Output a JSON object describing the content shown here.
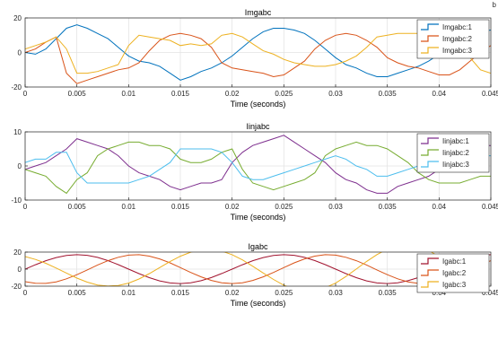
{
  "corner_mark": "b",
  "chart_data": [
    {
      "type": "line",
      "title": "Imgabc",
      "xlabel": "Time (seconds)",
      "ylabel": "",
      "xlim": [
        0,
        0.045
      ],
      "ylim": [
        -20,
        20
      ],
      "grid": true,
      "legend_position": "top-right",
      "xticks": [
        0,
        0.005,
        0.01,
        0.015,
        0.02,
        0.025,
        0.03,
        0.035,
        0.04,
        0.045
      ],
      "xtick_labels": [
        "0",
        "0.005",
        "0.01",
        "0.015",
        "0.02",
        "0.025",
        "0.03",
        "0.035",
        "0.04",
        "0.045"
      ],
      "yticks": [
        -20,
        0,
        20
      ],
      "ytick_labels": [
        "-20",
        "0",
        "20"
      ],
      "x": [
        0,
        0.001,
        0.002,
        0.003,
        0.004,
        0.005,
        0.006,
        0.007,
        0.008,
        0.009,
        0.01,
        0.011,
        0.012,
        0.013,
        0.014,
        0.015,
        0.016,
        0.017,
        0.018,
        0.019,
        0.02,
        0.021,
        0.022,
        0.023,
        0.024,
        0.025,
        0.026,
        0.027,
        0.028,
        0.029,
        0.03,
        0.031,
        0.032,
        0.033,
        0.034,
        0.035,
        0.036,
        0.037,
        0.038,
        0.039,
        0.04,
        0.041,
        0.042,
        0.043,
        0.044,
        0.045
      ],
      "series": [
        {
          "name": "Imgabc:1",
          "color": "#0072bd",
          "values": [
            0,
            -1,
            2,
            8,
            14,
            16,
            14,
            11,
            8,
            3,
            -2,
            -5,
            -6,
            -8,
            -12,
            -16,
            -14,
            -11,
            -9,
            -6,
            -2,
            3,
            8,
            12,
            14,
            14,
            13,
            11,
            7,
            2,
            -3,
            -7,
            -9,
            -12,
            -14,
            -14,
            -12,
            -10,
            -8,
            -5,
            -1,
            3,
            7,
            10,
            12,
            13
          ]
        },
        {
          "name": "Imgabc:2",
          "color": "#d95319",
          "values": [
            0,
            2,
            6,
            9,
            -12,
            -18,
            -16,
            -14,
            -12,
            -10,
            -9,
            -6,
            1,
            7,
            10,
            11,
            10,
            8,
            3,
            -6,
            -9,
            -10,
            -11,
            -12,
            -14,
            -13,
            -9,
            -5,
            2,
            7,
            10,
            11,
            10,
            7,
            3,
            -3,
            -6,
            -8,
            -9,
            -11,
            -13,
            -13,
            -10,
            -5,
            0,
            4
          ]
        },
        {
          "name": "Imgabc:3",
          "color": "#edb120",
          "values": [
            2,
            4,
            6,
            9,
            2,
            -12,
            -12,
            -11,
            -9,
            -7,
            4,
            10,
            9,
            8,
            7,
            4,
            5,
            4,
            5,
            10,
            11,
            9,
            5,
            1,
            -1,
            -4,
            -6,
            -7,
            -8,
            -8,
            -7,
            -5,
            -2,
            3,
            9,
            10,
            11,
            11,
            11,
            10,
            11,
            9,
            4,
            -3,
            -10,
            -12
          ]
        }
      ]
    },
    {
      "type": "line",
      "title": "Iinjabc",
      "xlabel": "Time (seconds)",
      "ylabel": "",
      "xlim": [
        0,
        0.045
      ],
      "ylim": [
        -10,
        10
      ],
      "grid": true,
      "legend_position": "top-right",
      "xticks": [
        0,
        0.005,
        0.01,
        0.015,
        0.02,
        0.025,
        0.03,
        0.035,
        0.04,
        0.045
      ],
      "xtick_labels": [
        "0",
        "0.005",
        "0.01",
        "0.015",
        "0.02",
        "0.025",
        "0.03",
        "0.035",
        "0.04",
        "0.045"
      ],
      "yticks": [
        -10,
        0,
        10
      ],
      "ytick_labels": [
        "-10",
        "0",
        "10"
      ],
      "x": [
        0,
        0.001,
        0.002,
        0.003,
        0.004,
        0.005,
        0.006,
        0.007,
        0.008,
        0.009,
        0.01,
        0.011,
        0.012,
        0.013,
        0.014,
        0.015,
        0.016,
        0.017,
        0.018,
        0.019,
        0.02,
        0.021,
        0.022,
        0.023,
        0.024,
        0.025,
        0.026,
        0.027,
        0.028,
        0.029,
        0.03,
        0.031,
        0.032,
        0.033,
        0.034,
        0.035,
        0.036,
        0.037,
        0.038,
        0.039,
        0.04,
        0.041,
        0.042,
        0.043,
        0.044,
        0.045
      ],
      "series": [
        {
          "name": "Iinjabc:1",
          "color": "#7e2f8e",
          "values": [
            -1,
            0,
            1,
            3,
            5,
            8,
            7,
            6,
            5,
            3,
            0,
            -2,
            -3,
            -4,
            -6,
            -7,
            -6,
            -5,
            -5,
            -4,
            1,
            4,
            6,
            7,
            8,
            9,
            7,
            5,
            3,
            1,
            -2,
            -4,
            -5,
            -7,
            -8,
            -8,
            -6,
            -5,
            -4,
            -3,
            -1,
            1,
            3,
            5,
            6,
            6
          ]
        },
        {
          "name": "Iinjabc:2",
          "color": "#77ac30",
          "values": [
            -1,
            -2,
            -3,
            -6,
            -8,
            -4,
            -2,
            3,
            5,
            6,
            7,
            7,
            6,
            6,
            5,
            2,
            1,
            1,
            2,
            4,
            5,
            -1,
            -5,
            -6,
            -7,
            -6,
            -5,
            -4,
            -2,
            3,
            5,
            6,
            7,
            6,
            6,
            5,
            3,
            1,
            -2,
            -4,
            -5,
            -5,
            -5,
            -4,
            -3,
            -3
          ]
        },
        {
          "name": "Iinjabc:3",
          "color": "#4dbeee",
          "values": [
            1,
            2,
            2,
            4,
            4,
            -2,
            -5,
            -5,
            -5,
            -5,
            -5,
            -4,
            -3,
            -1,
            1,
            5,
            5,
            5,
            5,
            4,
            1,
            -3,
            -4,
            -4,
            -3,
            -2,
            -1,
            0,
            1,
            2,
            3,
            2,
            0,
            -1,
            -3,
            -3,
            -2,
            -1,
            0,
            3,
            5,
            5,
            4,
            4,
            3,
            3
          ]
        }
      ]
    },
    {
      "type": "line",
      "title": "Igabc",
      "xlabel": "Time (seconds)",
      "ylabel": "",
      "xlim": [
        0,
        0.045
      ],
      "ylim": [
        -20,
        20
      ],
      "grid": true,
      "legend_position": "top-right",
      "xticks": [
        0,
        0.005,
        0.01,
        0.015,
        0.02,
        0.025,
        0.03,
        0.035,
        0.04,
        0.045
      ],
      "xtick_labels": [
        "0",
        "0.005",
        "0.01",
        "0.015",
        "0.02",
        "0.025",
        "0.03",
        "0.035",
        "0.04",
        "0.045"
      ],
      "yticks": [
        -20,
        0,
        20
      ],
      "ytick_labels": [
        "-20",
        "0",
        "20"
      ],
      "x": [
        0,
        0.001,
        0.002,
        0.003,
        0.004,
        0.005,
        0.006,
        0.007,
        0.008,
        0.009,
        0.01,
        0.011,
        0.012,
        0.013,
        0.014,
        0.015,
        0.016,
        0.017,
        0.018,
        0.019,
        0.02,
        0.021,
        0.022,
        0.023,
        0.024,
        0.025,
        0.026,
        0.027,
        0.028,
        0.029,
        0.03,
        0.031,
        0.032,
        0.033,
        0.034,
        0.035,
        0.036,
        0.037,
        0.038,
        0.039,
        0.04,
        0.041,
        0.042,
        0.043,
        0.044,
        0.045
      ],
      "series": [
        {
          "name": "Igabc:1",
          "color": "#a2142f",
          "values": [
            0,
            5.2,
            9.9,
            13.6,
            16.0,
            17.0,
            16.2,
            13.8,
            10.0,
            5.3,
            0,
            -5.3,
            -10.0,
            -13.8,
            -16.2,
            -17.0,
            -16.0,
            -13.6,
            -9.9,
            -5.2,
            0,
            5.2,
            9.9,
            13.6,
            16.0,
            17.0,
            16.2,
            13.8,
            10.0,
            5.3,
            0,
            -5.3,
            -10.0,
            -13.8,
            -16.2,
            -17.0,
            -16.0,
            -13.6,
            -9.9,
            -5.2,
            0,
            5.2,
            9.9,
            13.6,
            16.0,
            17.0
          ]
        },
        {
          "name": "Igabc:2",
          "color": "#d95319",
          "values": [
            -14.7,
            -16.6,
            -16.7,
            -14.9,
            -11.4,
            -6.5,
            -0.9,
            4.8,
            9.9,
            13.9,
            16.4,
            16.9,
            15.3,
            12.0,
            7.4,
            1.8,
            -3.9,
            -9.1,
            -13.3,
            -16.0,
            -16.9,
            -16.0,
            -13.3,
            -9.1,
            -3.9,
            1.8,
            7.4,
            12.0,
            15.3,
            16.9,
            16.4,
            13.9,
            9.9,
            4.8,
            -0.9,
            -6.5,
            -11.4,
            -14.9,
            -16.7,
            -16.6,
            -14.7,
            -11.2,
            -6.4,
            -0.9,
            4.8,
            9.9
          ]
        },
        {
          "name": "Igabc:3",
          "color": "#edb120",
          "values": [
            14.7,
            11.4,
            6.8,
            1.3,
            -4.6,
            -10.5,
            -15.3,
            -18.6,
            -19.9,
            -19.2,
            -16.4,
            -11.6,
            -5.3,
            1.8,
            8.8,
            15.2,
            19.9,
            22.7,
            23.2,
            21.2,
            16.9,
            10.8,
            3.4,
            -4.5,
            -12.1,
            -18.8,
            -23.6,
            -25.8,
            -25.2,
            -21.8,
            -16.4,
            -8.6,
            0.1,
            9.0,
            17.1,
            23.5,
            27.4,
            28.5,
            26.6,
            21.8,
            14.7,
            6.0,
            -3.5,
            -12.7,
            -20.8,
            -26.9
          ]
        }
      ]
    }
  ]
}
